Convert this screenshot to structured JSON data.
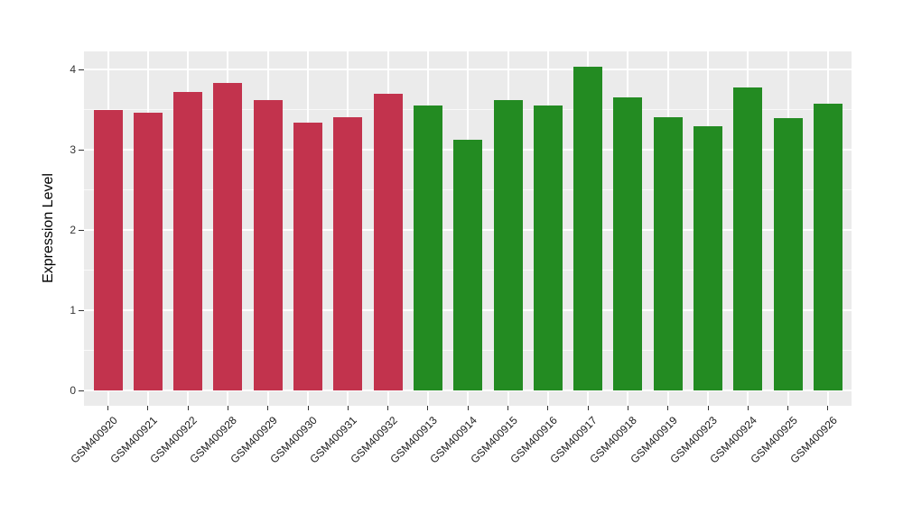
{
  "figure": {
    "background": "#FFFFFF",
    "panel_background": "#EBEBEB",
    "grid_color": "#FFFFFF",
    "axis_text_color": "#333333",
    "axis_title_color": "#000000"
  },
  "chart_data": {
    "type": "bar",
    "title": "",
    "xlabel": "",
    "ylabel": "Expression Level",
    "ylim": [
      0,
      4.23
    ],
    "yticks": [
      0,
      1,
      2,
      3,
      4
    ],
    "grid": "on",
    "legend_position": "none",
    "x_label_angle_deg": 45,
    "categories": [
      "GSM400920",
      "GSM400921",
      "GSM400922",
      "GSM400928",
      "GSM400929",
      "GSM400930",
      "GSM400931",
      "GSM400932",
      "GSM400913",
      "GSM400914",
      "GSM400915",
      "GSM400916",
      "GSM400917",
      "GSM400918",
      "GSM400919",
      "GSM400923",
      "GSM400924",
      "GSM400925",
      "GSM400926"
    ],
    "values": [
      3.49,
      3.46,
      3.72,
      3.83,
      3.62,
      3.34,
      3.41,
      3.7,
      3.55,
      3.12,
      3.62,
      3.55,
      4.03,
      3.65,
      3.4,
      3.29,
      3.77,
      3.39,
      3.57
    ],
    "groups": [
      "red",
      "red",
      "red",
      "red",
      "red",
      "red",
      "red",
      "red",
      "green",
      "green",
      "green",
      "green",
      "green",
      "green",
      "green",
      "green",
      "green",
      "green",
      "green"
    ],
    "group_colors": {
      "red": "#C2334D",
      "green": "#238B22"
    }
  }
}
